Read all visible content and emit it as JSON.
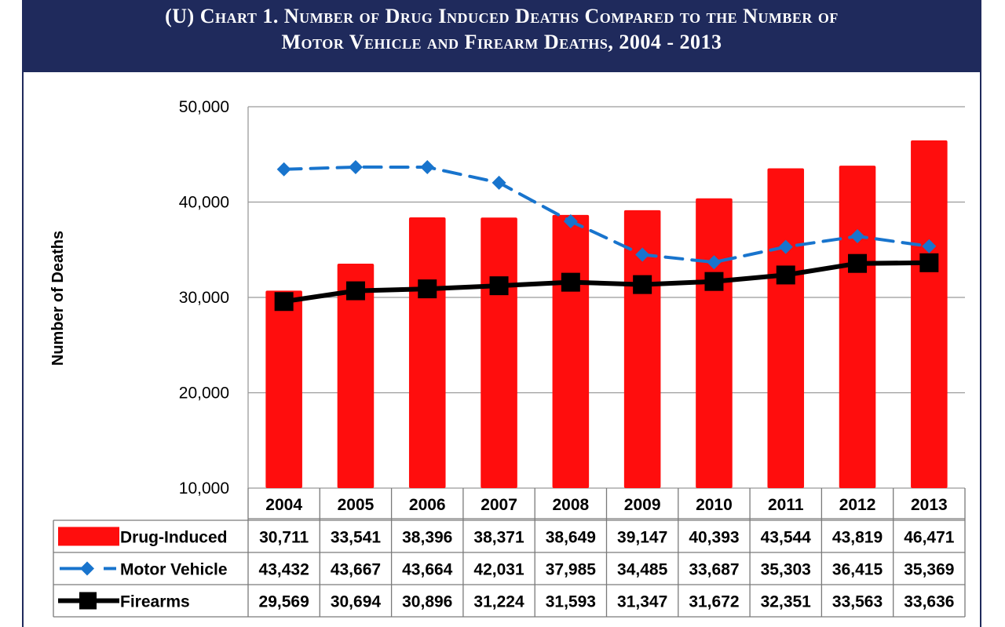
{
  "title": {
    "line1": "(U)  Chart 1.  Number of Drug Induced Deaths Compared to the Number of",
    "line2": "Motor Vehicle and Firearm Deaths, 2004 - 2013"
  },
  "chart_data": {
    "type": "bar",
    "ylabel": "Number of Deaths",
    "ylim": [
      10000,
      50000
    ],
    "yticks": [
      "10,000",
      "20,000",
      "30,000",
      "40,000",
      "50,000"
    ],
    "ytick_values": [
      10000,
      20000,
      30000,
      40000,
      50000
    ],
    "grid": true,
    "legend_position": "data-table-left",
    "categories": [
      "2004",
      "2005",
      "2006",
      "2007",
      "2008",
      "2009",
      "2010",
      "2011",
      "2012",
      "2013"
    ],
    "series": [
      {
        "name": "Drug-Induced",
        "type": "bar",
        "color": "#ff0d0d",
        "values": [
          30711,
          33541,
          38396,
          38371,
          38649,
          39147,
          40393,
          43544,
          43819,
          46471
        ],
        "labels": [
          "30,711",
          "33,541",
          "38,396",
          "38,371",
          "38,649",
          "39,147",
          "40,393",
          "43,544",
          "43,819",
          "46,471"
        ]
      },
      {
        "name": "Motor Vehicle",
        "type": "line-dashed-diamond",
        "color": "#1874cd",
        "values": [
          43432,
          43667,
          43664,
          42031,
          37985,
          34485,
          33687,
          35303,
          36415,
          35369
        ],
        "labels": [
          "43,432",
          "43,667",
          "43,664",
          "42,031",
          "37,985",
          "34,485",
          "33,687",
          "35,303",
          "36,415",
          "35,369"
        ]
      },
      {
        "name": "Firearms",
        "type": "line-square",
        "color": "#000000",
        "values": [
          29569,
          30694,
          30896,
          31224,
          31593,
          31347,
          31672,
          32351,
          33563,
          33636
        ],
        "labels": [
          "29,569",
          "30,694",
          "30,896",
          "31,224",
          "31,593",
          "31,347",
          "31,672",
          "32,351",
          "33,563",
          "33,636"
        ]
      }
    ]
  }
}
